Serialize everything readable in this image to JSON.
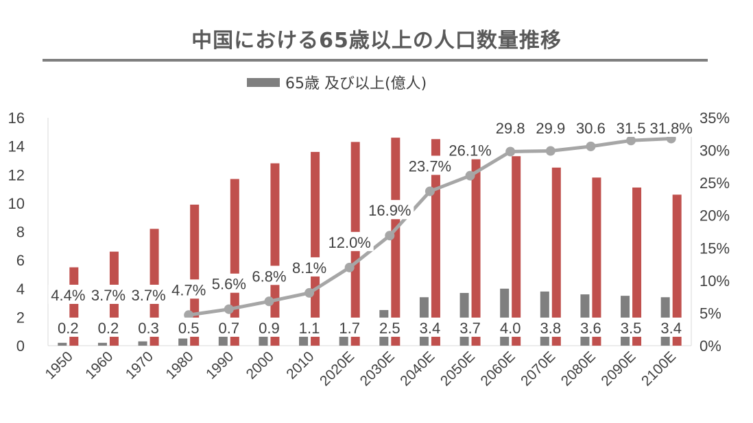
{
  "title": "中国における65歳以上の人口数量推移",
  "legend": {
    "label": "65歳 及び以上(億人)"
  },
  "colors": {
    "total_bar": "#c0504d",
    "senior_bar": "#7f7f7f",
    "ratio_line": "#a6a6a6",
    "label_bg": "#ffffff"
  },
  "chart_data": {
    "type": "bar",
    "categories": [
      "1950",
      "1960",
      "1970",
      "1980",
      "1990",
      "2000",
      "2010",
      "2020E",
      "2030E",
      "2040E",
      "2050E",
      "2060E",
      "2070E",
      "2080E",
      "2090E",
      "2100E"
    ],
    "series": [
      {
        "values": [
          5.5,
          6.6,
          8.2,
          9.9,
          11.7,
          12.8,
          13.6,
          14.3,
          14.6,
          14.5,
          14.0,
          13.3,
          12.5,
          11.8,
          11.1,
          10.6
        ]
      },
      {
        "name": "65歳 及び以上(億人)",
        "values": [
          0.2,
          0.2,
          0.3,
          0.5,
          0.7,
          0.9,
          1.1,
          1.7,
          2.5,
          3.4,
          3.7,
          4.0,
          3.8,
          3.6,
          3.5,
          3.4
        ],
        "labels": [
          "0.2",
          "0.2",
          "0.3",
          "0.5",
          "0.7",
          "0.9",
          "1.1",
          "1.7",
          "2.5",
          "3.4",
          "3.7",
          "4.0",
          "3.8",
          "3.6",
          "3.5",
          "3.4"
        ]
      },
      {
        "type": "line",
        "axis": "right",
        "values": [
          4.4,
          3.7,
          3.7,
          4.7,
          5.6,
          6.8,
          8.1,
          12.0,
          16.9,
          23.7,
          26.1,
          29.8,
          29.9,
          30.6,
          31.5,
          31.8
        ],
        "labels": [
          "4.4%",
          "3.7%",
          "3.7%",
          "4.7%",
          "5.6%",
          "6.8%",
          "8.1%",
          "12.0%",
          "16.9%",
          "23.7%",
          "26.1%",
          "29.8",
          "29.9",
          "30.6",
          "31.5",
          "31.8%"
        ]
      }
    ],
    "y_left": {
      "min": 0,
      "max": 16,
      "ticks": [
        "0",
        "2",
        "4",
        "6",
        "8",
        "10",
        "12",
        "14",
        "16"
      ]
    },
    "y_right": {
      "min": 0,
      "max": 35,
      "ticks": [
        "0%",
        "5%",
        "10%",
        "15%",
        "20%",
        "25%",
        "30%",
        "35%"
      ]
    },
    "legend_position": "top-center",
    "grid": false
  }
}
